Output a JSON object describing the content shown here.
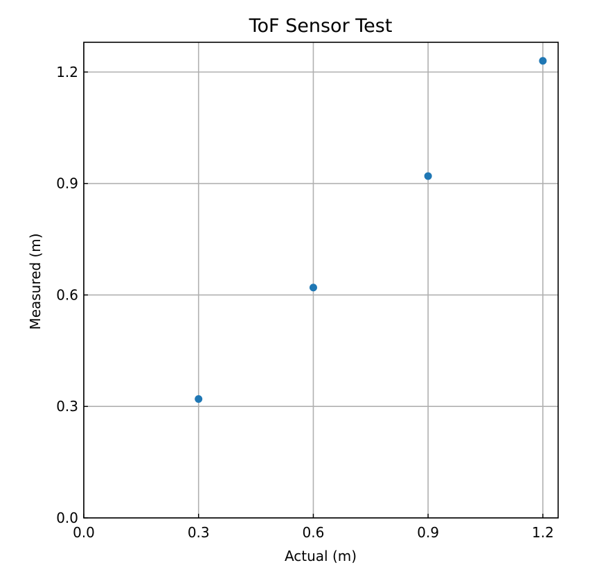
{
  "chart_data": {
    "type": "scatter",
    "title": "ToF Sensor Test",
    "xlabel": "Actual (m)",
    "ylabel": "Measured (m)",
    "xlim": [
      0.0,
      1.24
    ],
    "ylim": [
      0.0,
      1.28
    ],
    "xticks": [
      0.0,
      0.3,
      0.6,
      0.9,
      1.2
    ],
    "yticks": [
      0.0,
      0.3,
      0.6,
      0.9,
      1.2
    ],
    "xtick_labels": [
      "0.0",
      "0.3",
      "0.6",
      "0.9",
      "1.2"
    ],
    "ytick_labels": [
      "0.0",
      "0.3",
      "0.6",
      "0.9",
      "1.2"
    ],
    "grid": true,
    "series": [
      {
        "color": "#1f77b4",
        "x": [
          0.3,
          0.6,
          0.9,
          1.2
        ],
        "y": [
          0.32,
          0.62,
          0.92,
          1.23
        ]
      }
    ],
    "colors": {
      "grid": "#b0b0b0",
      "axes": "#000000",
      "marker": "#1f77b4"
    }
  }
}
